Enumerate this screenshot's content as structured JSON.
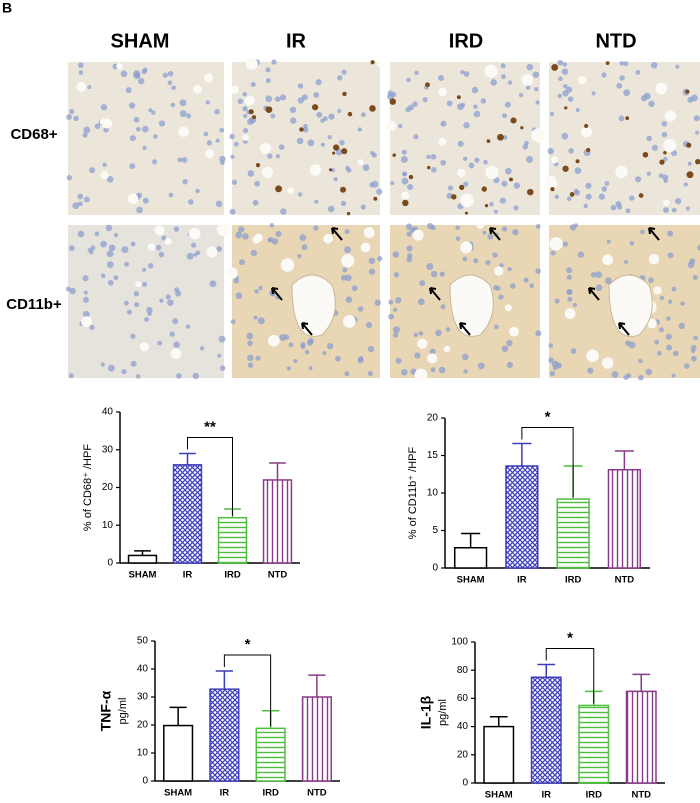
{
  "panel_label": "B",
  "columns": [
    "SHAM",
    "IR",
    "IRD",
    "NTD"
  ],
  "rows": [
    "CD68+",
    "CD11b+"
  ],
  "chart_data": [
    {
      "type": "bar",
      "ylabel": "% of CD68⁺ /HPF",
      "categories": [
        "SHAM",
        "IR",
        "IRD",
        "NTD"
      ],
      "values": [
        2,
        26,
        12,
        22
      ],
      "errors": [
        1.2,
        3,
        2.3,
        4.5
      ],
      "colors": [
        "#ffffff",
        "#3c3cbe",
        "#4cbf3c",
        "#8a3a8a"
      ],
      "patterns": [
        "none",
        "crosshatch",
        "horizontal",
        "vertical"
      ],
      "ylim": [
        0,
        40
      ],
      "yticks": [
        0,
        10,
        20,
        30,
        40
      ],
      "annotation": {
        "text": "**",
        "between": [
          "IR",
          "IRD"
        ]
      }
    },
    {
      "type": "bar",
      "ylabel": "% of CD11b⁺ /HPF",
      "categories": [
        "SHAM",
        "IR",
        "IRD",
        "NTD"
      ],
      "values": [
        2.7,
        13.6,
        9.2,
        13.1
      ],
      "errors": [
        1.9,
        3,
        4.4,
        2.5
      ],
      "colors": [
        "#ffffff",
        "#3c3cbe",
        "#4cbf3c",
        "#8a3a8a"
      ],
      "patterns": [
        "none",
        "crosshatch",
        "horizontal",
        "vertical"
      ],
      "ylim": [
        0,
        20
      ],
      "yticks": [
        0,
        5,
        10,
        15,
        20
      ],
      "annotation": {
        "text": "*",
        "between": [
          "IR",
          "IRD"
        ]
      }
    },
    {
      "type": "bar",
      "ylabel": "TNF-α",
      "yunit": "pg/ml",
      "categories": [
        "SHAM",
        "IR",
        "IRD",
        "NTD"
      ],
      "values": [
        19.8,
        32.8,
        18.8,
        30
      ],
      "errors": [
        6.5,
        6.5,
        6.3,
        7.8
      ],
      "colors": [
        "#ffffff",
        "#3c3cbe",
        "#4cbf3c",
        "#8a3a8a"
      ],
      "patterns": [
        "none",
        "crosshatch",
        "horizontal",
        "vertical"
      ],
      "ylim": [
        0,
        50
      ],
      "yticks": [
        0,
        10,
        20,
        30,
        40,
        50
      ],
      "annotation": {
        "text": "*",
        "between": [
          "IR",
          "IRD"
        ]
      }
    },
    {
      "type": "bar",
      "ylabel": "IL-1β",
      "yunit": "pg/ml",
      "categories": [
        "SHAM",
        "IR",
        "IRD",
        "NTD"
      ],
      "values": [
        40,
        75,
        55,
        65
      ],
      "errors": [
        7,
        9,
        10,
        12
      ],
      "colors": [
        "#ffffff",
        "#3c3cbe",
        "#4cbf3c",
        "#8a3a8a"
      ],
      "patterns": [
        "none",
        "crosshatch",
        "horizontal",
        "vertical"
      ],
      "ylim": [
        0,
        100
      ],
      "yticks": [
        0,
        20,
        40,
        60,
        80,
        100
      ],
      "annotation": {
        "text": "*",
        "between": [
          "IR",
          "IRD"
        ]
      }
    }
  ]
}
